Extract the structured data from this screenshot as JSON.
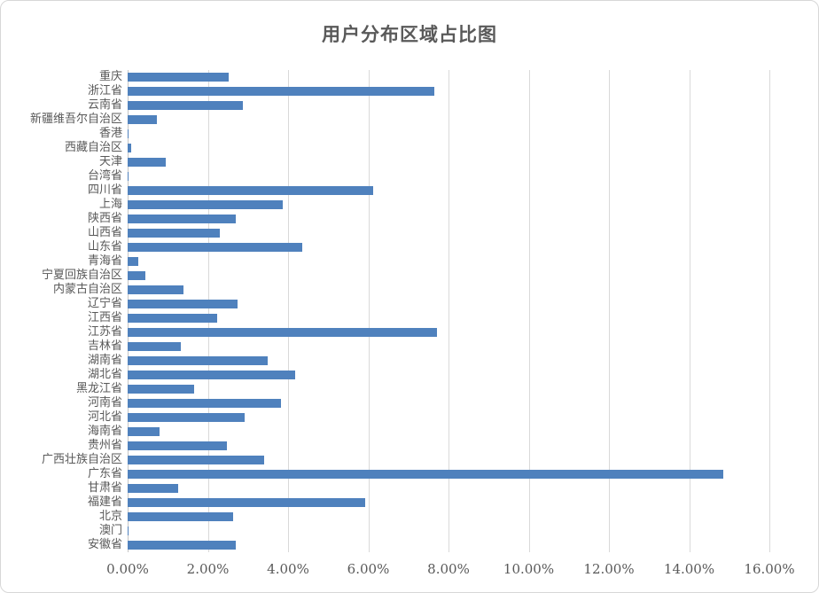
{
  "chart_data": {
    "type": "bar",
    "orientation": "horizontal",
    "title": "用户分布区域占比图",
    "categories": [
      "重庆",
      "浙江省",
      "云南省",
      "新疆维吾尔自治区",
      "香港",
      "西藏自治区",
      "天津",
      "台湾省",
      "四川省",
      "上海",
      "陕西省",
      "山西省",
      "山东省",
      "青海省",
      "宁夏回族自治区",
      "内蒙古自治区",
      "辽宁省",
      "江西省",
      "江苏省",
      "吉林省",
      "湖南省",
      "湖北省",
      "黑龙江省",
      "河南省",
      "河北省",
      "海南省",
      "贵州省",
      "广西壮族自治区",
      "广东省",
      "甘肃省",
      "福建省",
      "北京",
      "澳门",
      "安徽省"
    ],
    "values": [
      2.53,
      7.64,
      2.87,
      0.74,
      0.02,
      0.09,
      0.96,
      0.02,
      6.12,
      3.87,
      2.69,
      2.3,
      4.35,
      0.27,
      0.44,
      1.4,
      2.73,
      2.24,
      7.72,
      1.32,
      3.49,
      4.17,
      1.66,
      3.82,
      2.91,
      0.79,
      2.47,
      3.4,
      14.86,
      1.25,
      5.92,
      2.63,
      0.02,
      2.7
    ],
    "value_unit": "percent",
    "xlabel": "",
    "ylabel": "",
    "xlim": [
      0,
      16
    ],
    "x_ticks": [
      "0.00%",
      "2.00%",
      "4.00%",
      "6.00%",
      "8.00%",
      "10.00%",
      "12.00%",
      "14.00%",
      "16.00%"
    ],
    "grid": true,
    "legend": "none",
    "bar_color": "#4f81bd",
    "gridline_color": "#d9d9d9",
    "axis_line_color": "#c6c6c6",
    "text_color": "#595959"
  }
}
